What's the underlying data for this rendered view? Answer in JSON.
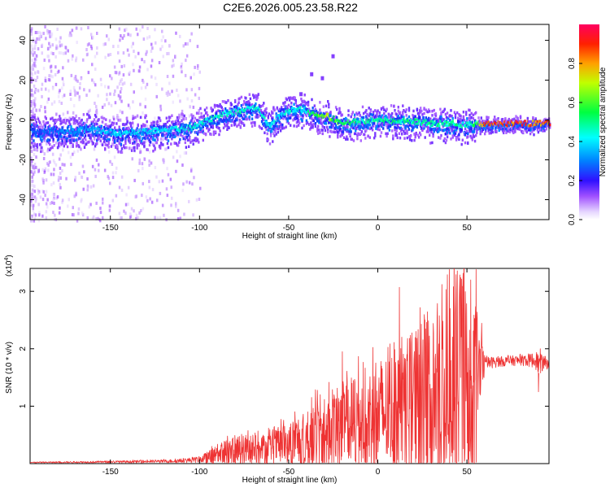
{
  "title": "C2E6.2026.005.23.58.R22",
  "chart_data": [
    {
      "type": "heatmap",
      "name": "spectrogram",
      "xlabel": "Height of straight line (km)",
      "ylabel": "Frequency (Hz)",
      "xlim": [
        -195,
        96
      ],
      "ylim": [
        -50,
        48
      ],
      "xticks": [
        -150,
        -100,
        -50,
        0,
        50
      ],
      "yticks": [
        -40,
        -20,
        0,
        20,
        40
      ],
      "colorbar": {
        "label": "Normalized spectral amplitude",
        "range": [
          0,
          1
        ],
        "ticks": [
          "0.0",
          "0.2",
          "0.4",
          "0.6",
          "0.8"
        ]
      },
      "ridge": {
        "description": "frequency of strongest amplitude vs height",
        "x": [
          -195,
          -180,
          -160,
          -145,
          -130,
          -115,
          -105,
          -95,
          -85,
          -75,
          -68,
          -62,
          -55,
          -48,
          -42,
          -38,
          -30,
          -20,
          -10,
          0,
          10,
          20,
          30,
          40,
          50,
          55,
          60,
          70,
          80,
          90,
          96
        ],
        "y": [
          -6,
          -6,
          -5,
          -7,
          -6,
          -5,
          -4,
          0,
          3,
          5,
          6,
          -3,
          2,
          5,
          5,
          3,
          2,
          -2,
          -1,
          0,
          -1,
          -1,
          -2,
          -2,
          -3,
          -2,
          -2,
          -2,
          -2,
          -2,
          -2
        ],
        "amplitude": [
          0.25,
          0.3,
          0.35,
          0.4,
          0.4,
          0.42,
          0.45,
          0.45,
          0.45,
          0.45,
          0.45,
          0.45,
          0.4,
          0.45,
          0.4,
          0.55,
          0.7,
          0.55,
          0.5,
          0.5,
          0.5,
          0.5,
          0.5,
          0.5,
          0.45,
          0.55,
          0.9,
          0.9,
          0.9,
          0.85,
          0.85
        ]
      },
      "spikes": [
        {
          "x": -44,
          "y": 14
        },
        {
          "x": -38,
          "y": 24
        },
        {
          "x": -26,
          "y": 33
        },
        {
          "x": -32,
          "y": 22
        }
      ]
    },
    {
      "type": "line",
      "name": "snr",
      "xlabel": "Height of straight line (km)",
      "ylabel": "SNR (10 * v/v)",
      "yscale_label": "(x10",
      "yscale_exp": "4",
      "yscale_close": ")",
      "xlim": [
        -195,
        96
      ],
      "ylim": [
        0,
        3.4
      ],
      "xticks": [
        -150,
        -100,
        -50,
        0,
        50
      ],
      "yticks": [
        1,
        2,
        3
      ],
      "color": "#ee3333",
      "envelope": {
        "x": [
          -195,
          -150,
          -120,
          -110,
          -100,
          -90,
          -80,
          -70,
          -60,
          -50,
          -40,
          -30,
          -20,
          -10,
          0,
          10,
          20,
          30,
          35,
          40,
          45,
          50,
          55,
          58,
          60,
          70,
          80,
          88,
          90,
          96
        ],
        "base": [
          0.02,
          0.03,
          0.04,
          0.05,
          0.07,
          0.14,
          0.22,
          0.22,
          0.28,
          0.35,
          0.45,
          0.55,
          0.62,
          0.75,
          0.85,
          0.95,
          1.05,
          1.2,
          1.3,
          1.4,
          1.45,
          1.45,
          1.45,
          1.6,
          1.75,
          1.78,
          1.8,
          1.8,
          1.75,
          1.75
        ],
        "amp": [
          0.01,
          0.02,
          0.03,
          0.04,
          0.06,
          0.2,
          0.35,
          0.3,
          0.3,
          0.45,
          0.6,
          0.8,
          0.9,
          1.0,
          1.1,
          1.2,
          1.4,
          1.8,
          2.0,
          2.2,
          2.2,
          2.1,
          1.8,
          0.8,
          0.12,
          0.1,
          0.1,
          0.15,
          0.2,
          0.1
        ]
      },
      "peaks": [
        {
          "x": -20,
          "y": 1.95
        },
        {
          "x": -13,
          "y": 1.4
        },
        {
          "x": 12,
          "y": 3.07
        },
        {
          "x": 40,
          "y": 3.38
        },
        {
          "x": 52,
          "y": 3.2
        },
        {
          "x": 55,
          "y": 3.38
        },
        {
          "x": 90,
          "y": 1.25
        },
        {
          "x": 91,
          "y": 2.0
        }
      ]
    }
  ]
}
